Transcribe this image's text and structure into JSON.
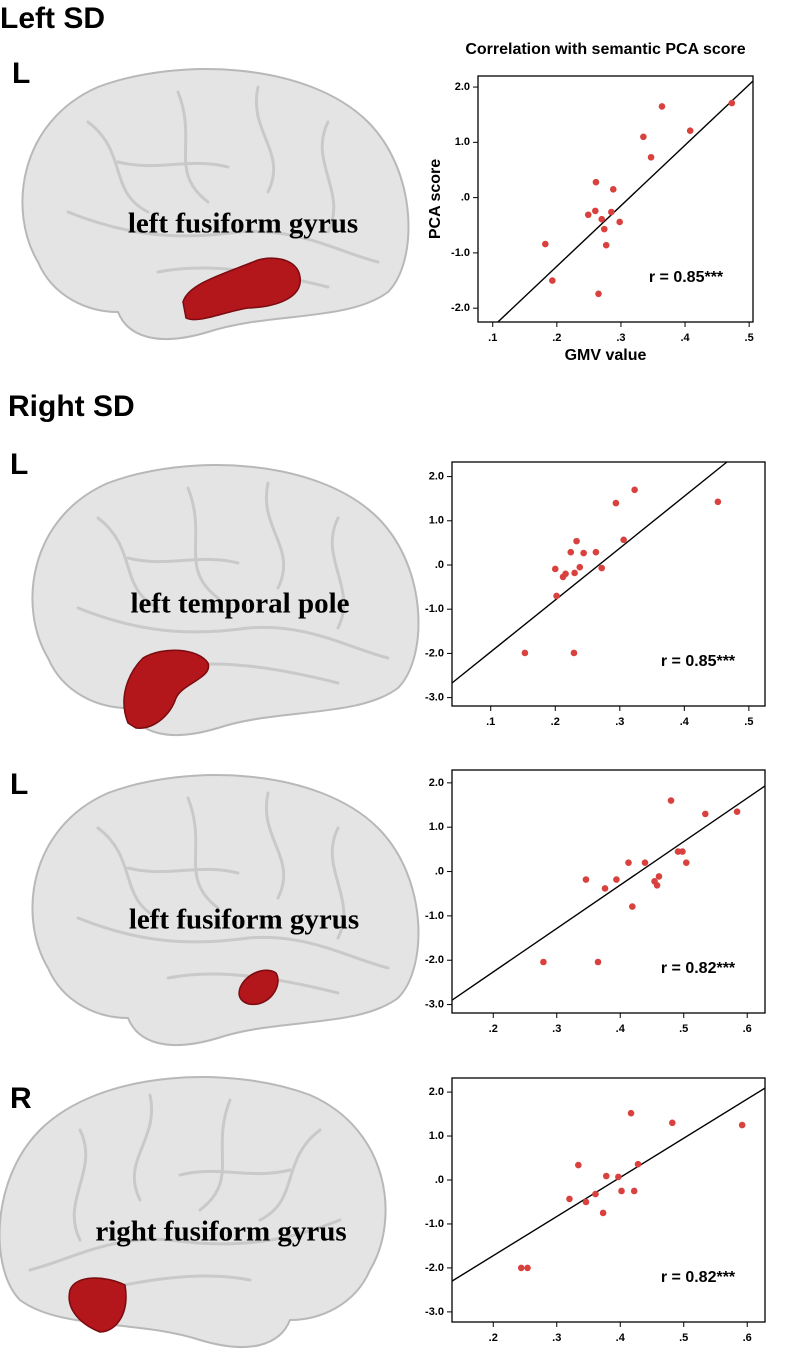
{
  "headings": [
    "Left SD",
    "Right SD"
  ],
  "panels": [
    {
      "hemisphere": "L",
      "region": "left fusiform gyrus"
    },
    {
      "hemisphere": "L",
      "region": "left temporal pole"
    },
    {
      "hemisphere": "L",
      "region": "left fusiform gyrus"
    },
    {
      "hemisphere": "R",
      "region": "right fusiform gyrus"
    }
  ],
  "chart_data": [
    {
      "type": "scatter",
      "title": "Correlation with semantic PCA score",
      "x_label": "GMV value",
      "y_label": "PCA score",
      "x": [
        0.182,
        0.193,
        0.249,
        0.26,
        0.261,
        0.27,
        0.274,
        0.277,
        0.285,
        0.288,
        0.298,
        0.265,
        0.335,
        0.347,
        0.364,
        0.408,
        0.473
      ],
      "values": [
        -0.84,
        -1.5,
        -0.31,
        -0.24,
        0.28,
        -0.39,
        -0.57,
        -0.86,
        -0.26,
        0.15,
        -0.44,
        -1.74,
        1.1,
        0.73,
        1.65,
        1.21,
        1.71
      ],
      "color": "#d9413e",
      "fit": {
        "x": [
          0.108,
          0.506
        ],
        "values": [
          -2.25,
          2.11
        ]
      },
      "annotation": "r = 0.85***",
      "xlim": [
        0.077,
        0.506
      ],
      "ylim": [
        -2.25,
        2.2
      ],
      "xticks": [
        {
          "value": 0.1,
          "label": ".1"
        },
        {
          "value": 0.2,
          "label": ".2"
        },
        {
          "value": 0.3,
          "label": ".3"
        },
        {
          "value": 0.4,
          "label": ".4"
        },
        {
          "value": 0.5,
          "label": ".5"
        }
      ],
      "yticks": [
        {
          "value": 2,
          "label": "2.0"
        },
        {
          "value": 1,
          "label": "1.0"
        },
        {
          "value": 0,
          "label": ".0"
        },
        {
          "value": -1,
          "label": "-1.0"
        },
        {
          "value": -2,
          "label": "-2.0"
        }
      ]
    },
    {
      "type": "scatter",
      "x": [
        0.153,
        0.229,
        0.202,
        0.2,
        0.212,
        0.216,
        0.224,
        0.23,
        0.233,
        0.238,
        0.244,
        0.263,
        0.272,
        0.294,
        0.306,
        0.323,
        0.452
      ],
      "values": [
        -1.99,
        -1.99,
        -0.7,
        -0.09,
        -0.27,
        -0.2,
        0.29,
        -0.18,
        0.54,
        -0.05,
        0.27,
        0.29,
        -0.07,
        1.4,
        0.57,
        1.7,
        1.43
      ],
      "color": "#d9413e",
      "fit": {
        "x": [
          0.04,
          0.466
        ],
        "values": [
          -2.67,
          2.33
        ]
      },
      "annotation": "r = 0.85***",
      "xlim": [
        0.04,
        0.525
      ],
      "ylim": [
        -3.19,
        2.33
      ],
      "xticks": [
        {
          "value": 0.1,
          "label": ".1"
        },
        {
          "value": 0.2,
          "label": ".2"
        },
        {
          "value": 0.3,
          "label": ".3"
        },
        {
          "value": 0.4,
          "label": ".4"
        },
        {
          "value": 0.5,
          "label": ".5"
        }
      ],
      "yticks": [
        {
          "value": 2,
          "label": "2.0"
        },
        {
          "value": 1,
          "label": "1.0"
        },
        {
          "value": 0,
          "label": ".0"
        },
        {
          "value": -1,
          "label": "-1.0"
        },
        {
          "value": -2,
          "label": "-2.0"
        },
        {
          "value": -3,
          "label": "-3.0"
        }
      ]
    },
    {
      "type": "scatter",
      "x": [
        0.279,
        0.365,
        0.346,
        0.376,
        0.394,
        0.413,
        0.419,
        0.439,
        0.454,
        0.458,
        0.461,
        0.48,
        0.491,
        0.498,
        0.504,
        0.534,
        0.584
      ],
      "values": [
        -2.04,
        -2.04,
        -0.18,
        -0.38,
        -0.18,
        0.2,
        -0.79,
        0.2,
        -0.22,
        -0.31,
        -0.11,
        1.6,
        0.45,
        0.45,
        0.2,
        1.3,
        1.35
      ],
      "color": "#d9413e",
      "fit": {
        "x": [
          0.135,
          0.628
        ],
        "values": [
          -2.9,
          1.93
        ]
      },
      "annotation": "r = 0.82***",
      "xlim": [
        0.135,
        0.628
      ],
      "ylim": [
        -3.19,
        2.29
      ],
      "xticks": [
        {
          "value": 0.2,
          "label": ".2"
        },
        {
          "value": 0.3,
          "label": ".3"
        },
        {
          "value": 0.4,
          "label": ".4"
        },
        {
          "value": 0.5,
          "label": ".5"
        },
        {
          "value": 0.6,
          "label": ".6"
        }
      ],
      "yticks": [
        {
          "value": 2,
          "label": "2.0"
        },
        {
          "value": 1,
          "label": "1.0"
        },
        {
          "value": 0,
          "label": ".0"
        },
        {
          "value": -1,
          "label": "-1.0"
        },
        {
          "value": -2,
          "label": "-2.0"
        },
        {
          "value": -3,
          "label": "-3.0"
        }
      ]
    },
    {
      "type": "scatter",
      "x": [
        0.244,
        0.254,
        0.32,
        0.334,
        0.346,
        0.361,
        0.373,
        0.378,
        0.397,
        0.402,
        0.422,
        0.428,
        0.417,
        0.482,
        0.592
      ],
      "values": [
        -2.0,
        -2.0,
        -0.43,
        0.34,
        -0.5,
        -0.32,
        -0.75,
        0.09,
        0.07,
        -0.25,
        -0.25,
        0.36,
        1.52,
        1.3,
        1.25
      ],
      "color": "#d9413e",
      "fit": {
        "x": [
          0.135,
          0.628
        ],
        "values": [
          -2.3,
          2.09
        ]
      },
      "annotation": "r = 0.82***",
      "xlim": [
        0.135,
        0.628
      ],
      "ylim": [
        -3.23,
        2.32
      ],
      "xticks": [
        {
          "value": 0.2,
          "label": ".2"
        },
        {
          "value": 0.3,
          "label": ".3"
        },
        {
          "value": 0.4,
          "label": ".4"
        },
        {
          "value": 0.5,
          "label": ".5"
        },
        {
          "value": 0.6,
          "label": ".6"
        }
      ],
      "yticks": [
        {
          "value": 2,
          "label": "2.0"
        },
        {
          "value": 1,
          "label": "1.0"
        },
        {
          "value": 0,
          "label": ".0"
        },
        {
          "value": -1,
          "label": "-1.0"
        },
        {
          "value": -2,
          "label": "-2.0"
        },
        {
          "value": -3,
          "label": "-3.0"
        }
      ]
    }
  ]
}
